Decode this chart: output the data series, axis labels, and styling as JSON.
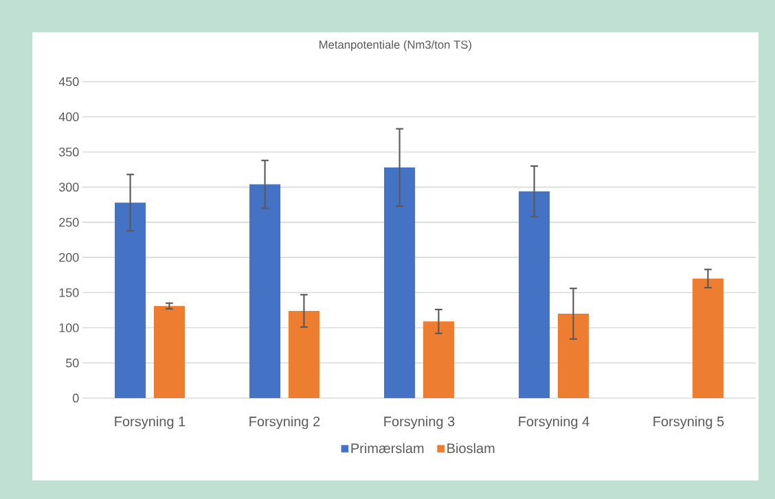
{
  "chart_data": {
    "type": "bar",
    "title": "Metanpotentiale (Nm3/ton TS)",
    "categories": [
      "Forsyning 1",
      "Forsyning 2",
      "Forsyning 3",
      "Forsyning 4",
      "Forsyning 5"
    ],
    "series": [
      {
        "name": "Primærslam",
        "color": "#4472c4",
        "values": [
          278,
          304,
          328,
          294,
          null
        ],
        "errors": [
          40,
          34,
          55,
          36,
          null
        ]
      },
      {
        "name": "Bioslam",
        "color": "#ed7d31",
        "values": [
          131,
          124,
          109,
          120,
          170
        ],
        "errors": [
          4,
          23,
          17,
          36,
          13
        ]
      }
    ],
    "ylim": [
      0,
      450
    ],
    "yticks": [
      0,
      50,
      100,
      150,
      200,
      250,
      300,
      350,
      400,
      450
    ],
    "grid": "y",
    "legend": "bottom"
  }
}
